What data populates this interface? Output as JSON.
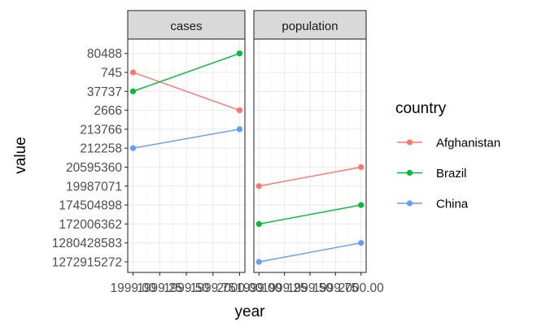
{
  "chart_data": {
    "type": "line",
    "facets": [
      "cases",
      "population"
    ],
    "xlabel": "year",
    "ylabel": "value",
    "x_tick_labels": [
      "1999.00",
      "1999.25",
      "1999.50",
      "1999.75",
      "2000.00"
    ],
    "y_categories": [
      "1272915272",
      "1280428583",
      "172006362",
      "174504898",
      "19987071",
      "20595360",
      "212258",
      "213766",
      "2666",
      "37737",
      "745",
      "80488"
    ],
    "legend": {
      "title": "country",
      "entries": [
        "Afghanistan",
        "Brazil",
        "China"
      ]
    },
    "colors": {
      "Afghanistan": "#F8766D",
      "Brazil": "#00BA38",
      "China": "#619CFF"
    },
    "series": [
      {
        "facet": "cases",
        "name": "Afghanistan",
        "x": [
          1999,
          2000
        ],
        "y": [
          "745",
          "2666"
        ]
      },
      {
        "facet": "cases",
        "name": "Brazil",
        "x": [
          1999,
          2000
        ],
        "y": [
          "37737",
          "80488"
        ]
      },
      {
        "facet": "cases",
        "name": "China",
        "x": [
          1999,
          2000
        ],
        "y": [
          "212258",
          "213766"
        ]
      },
      {
        "facet": "population",
        "name": "Afghanistan",
        "x": [
          1999,
          2000
        ],
        "y": [
          "19987071",
          "20595360"
        ]
      },
      {
        "facet": "population",
        "name": "Brazil",
        "x": [
          1999,
          2000
        ],
        "y": [
          "172006362",
          "174504898"
        ]
      },
      {
        "facet": "population",
        "name": "China",
        "x": [
          1999,
          2000
        ],
        "y": [
          "1272915272",
          "1280428583"
        ]
      }
    ],
    "grid": true
  }
}
